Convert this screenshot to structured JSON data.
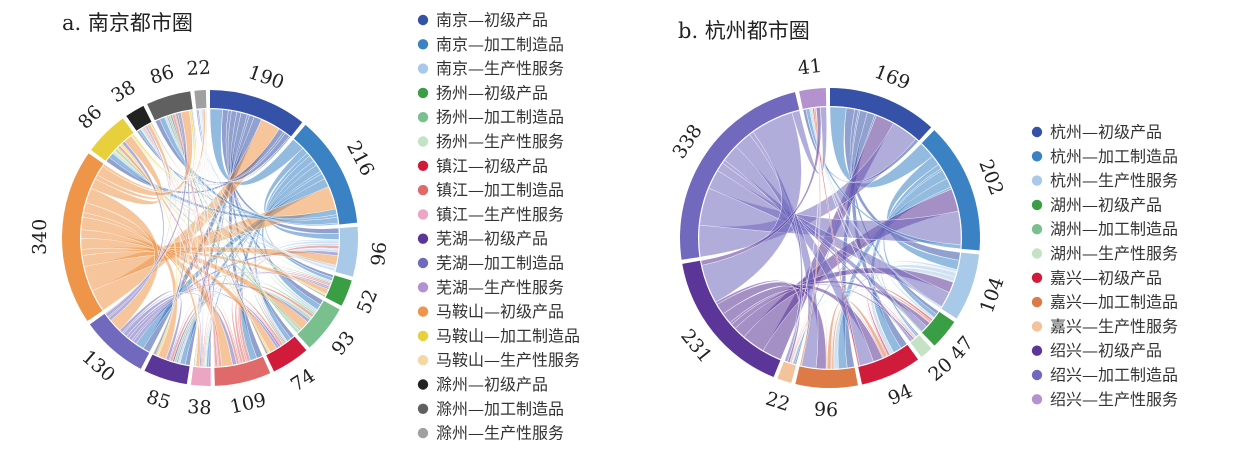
{
  "chart_data": [
    {
      "type": "chord",
      "title": "a. 南京都市圈",
      "groups": [
        {
          "name": "南京—初级产品",
          "value": 190,
          "color": "#3552a8"
        },
        {
          "name": "南京—加工制造品",
          "value": 216,
          "color": "#3b82c4"
        },
        {
          "name": "南京—生产性服务",
          "value": 96,
          "color": "#a9c9e8"
        },
        {
          "name": "扬州—初级产品",
          "value": 52,
          "color": "#3a9e45"
        },
        {
          "name": "扬州—加工制造品",
          "value": 93,
          "color": "#79c08e"
        },
        {
          "name": "扬州—生产性服务",
          "value": 0,
          "color": "#c3e3c4"
        },
        {
          "name": "镇江—初级产品",
          "value": 74,
          "color": "#d11b3a"
        },
        {
          "name": "镇江—加工制造品",
          "value": 109,
          "color": "#e06a6a"
        },
        {
          "name": "镇江—生产性服务",
          "value": 38,
          "color": "#eca5c3"
        },
        {
          "name": "芜湖—初级产品",
          "value": 85,
          "color": "#5b3597"
        },
        {
          "name": "芜湖—加工制造品",
          "value": 130,
          "color": "#7169bd"
        },
        {
          "name": "芜湖—生产性服务",
          "value": 0,
          "color": "#b392cf"
        },
        {
          "name": "马鞍山—初级产品",
          "value": 340,
          "color": "#ef9549"
        },
        {
          "name": "马鞍山—加工制造品",
          "value": 86,
          "color": "#e8d03c"
        },
        {
          "name": "马鞍山—生产性服务",
          "value": 0,
          "color": "#f4d7a3"
        },
        {
          "name": "滁州—初级产品",
          "value": 38,
          "color": "#222222"
        },
        {
          "name": "滁州—加工制造品",
          "value": 86,
          "color": "#606060"
        },
        {
          "name": "滁州—生产性服务",
          "value": 22,
          "color": "#a0a0a0"
        }
      ]
    },
    {
      "type": "chord",
      "title": "b. 杭州都市圈",
      "groups": [
        {
          "name": "杭州—初级产品",
          "value": 169,
          "color": "#3552a8"
        },
        {
          "name": "杭州—加工制造品",
          "value": 202,
          "color": "#3b82c4"
        },
        {
          "name": "杭州—生产性服务",
          "value": 104,
          "color": "#a9c9e8"
        },
        {
          "name": "湖州—初级产品",
          "value": 47,
          "color": "#3a9e45"
        },
        {
          "name": "湖州—加工制造品",
          "value": 0,
          "color": "#79c08e"
        },
        {
          "name": "湖州—生产性服务",
          "value": 20,
          "color": "#c3e3c4"
        },
        {
          "name": "嘉兴—初级产品",
          "value": 94,
          "color": "#d11b3a"
        },
        {
          "name": "嘉兴—加工制造品",
          "value": 96,
          "color": "#dd7a45"
        },
        {
          "name": "嘉兴—生产性服务",
          "value": 22,
          "color": "#f3c39b"
        },
        {
          "name": "绍兴—初级产品",
          "value": 231,
          "color": "#5b3597"
        },
        {
          "name": "绍兴—加工制造品",
          "value": 338,
          "color": "#7169bd"
        },
        {
          "name": "绍兴—生产性服务",
          "value": 41,
          "color": "#b392cf"
        }
      ]
    }
  ]
}
